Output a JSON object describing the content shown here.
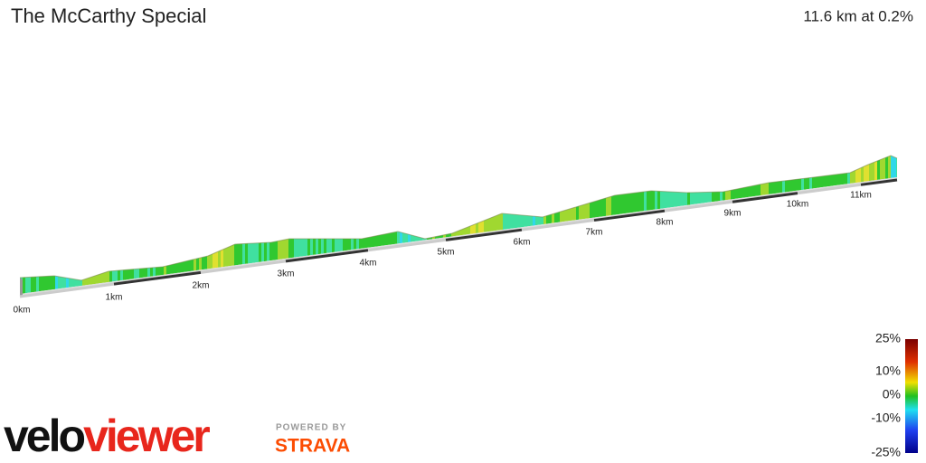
{
  "header": {
    "title": "The McCarthy Special",
    "summary": "11.6 km at 0.2%"
  },
  "profile": {
    "distance_labels": [
      "0km",
      "1km",
      "2km",
      "3km",
      "4km",
      "5km",
      "6km",
      "7km",
      "8km",
      "9km",
      "10km",
      "11km"
    ]
  },
  "legend": {
    "labels": [
      "25%",
      "10%",
      "0%",
      "-10%",
      "-25%"
    ]
  },
  "branding": {
    "logo_dark": "velo",
    "logo_red": "viewer",
    "powered_by": "POWERED BY",
    "partner": "STRAVA"
  }
}
